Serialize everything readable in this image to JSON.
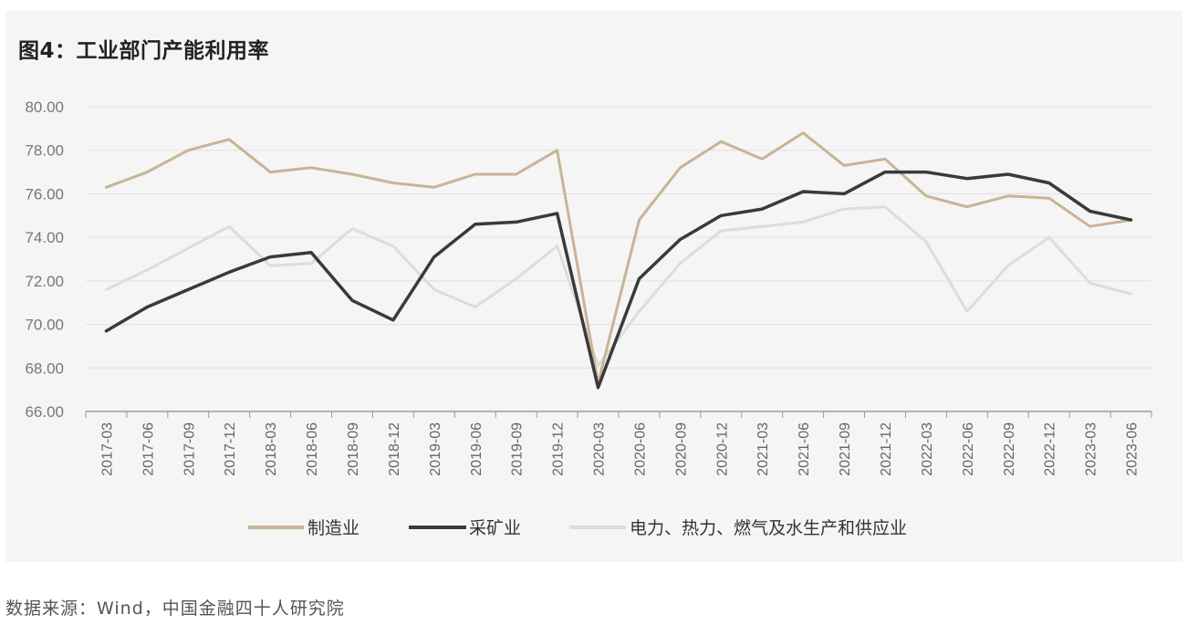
{
  "title": "图4：工业部门产能利用率",
  "source": "数据来源：Wind，中国金融四十人研究院",
  "chart_data": {
    "type": "line",
    "title": "图4：工业部门产能利用率",
    "x": [
      "2017-03",
      "2017-06",
      "2017-09",
      "2017-12",
      "2018-03",
      "2018-06",
      "2018-09",
      "2018-12",
      "2019-03",
      "2019-06",
      "2019-09",
      "2019-12",
      "2020-03",
      "2020-06",
      "2020-09",
      "2020-12",
      "2021-03",
      "2021-06",
      "2021-09",
      "2021-12",
      "2022-03",
      "2022-06",
      "2022-09",
      "2022-12",
      "2023-03",
      "2023-06"
    ],
    "ylim": [
      66,
      80
    ],
    "yticks": [
      66,
      68,
      70,
      72,
      74,
      76,
      78,
      80
    ],
    "ytick_labels": [
      "66.00",
      "68.00",
      "70.00",
      "72.00",
      "74.00",
      "76.00",
      "78.00",
      "80.00"
    ],
    "grid": true,
    "legend_position": "bottom",
    "series": [
      {
        "name": "制造业",
        "color": "#c8b496",
        "values": [
          76.3,
          77.0,
          78.0,
          78.5,
          77.0,
          77.2,
          76.9,
          76.5,
          76.3,
          76.9,
          76.9,
          78.0,
          67.3,
          74.8,
          77.2,
          78.4,
          77.6,
          78.8,
          77.3,
          77.6,
          75.9,
          75.4,
          75.9,
          75.8,
          74.5,
          74.8
        ]
      },
      {
        "name": "采矿业",
        "color": "#3a3a3a",
        "values": [
          69.7,
          70.8,
          71.6,
          72.4,
          73.1,
          73.3,
          71.1,
          70.2,
          73.1,
          74.6,
          74.7,
          75.1,
          67.1,
          72.1,
          73.9,
          75.0,
          75.3,
          76.1,
          76.0,
          77.0,
          77.0,
          76.7,
          76.9,
          76.5,
          75.2,
          74.8
        ]
      },
      {
        "name": "电力、热力、燃气及水生产和供应业",
        "color": "#dcdcdc",
        "values": [
          71.6,
          72.5,
          73.5,
          74.5,
          72.7,
          72.8,
          74.4,
          73.6,
          71.6,
          70.8,
          72.1,
          73.6,
          68.1,
          70.6,
          72.8,
          74.3,
          74.5,
          74.7,
          75.3,
          75.4,
          73.8,
          70.6,
          72.7,
          74.0,
          71.9,
          71.4
        ]
      }
    ]
  }
}
